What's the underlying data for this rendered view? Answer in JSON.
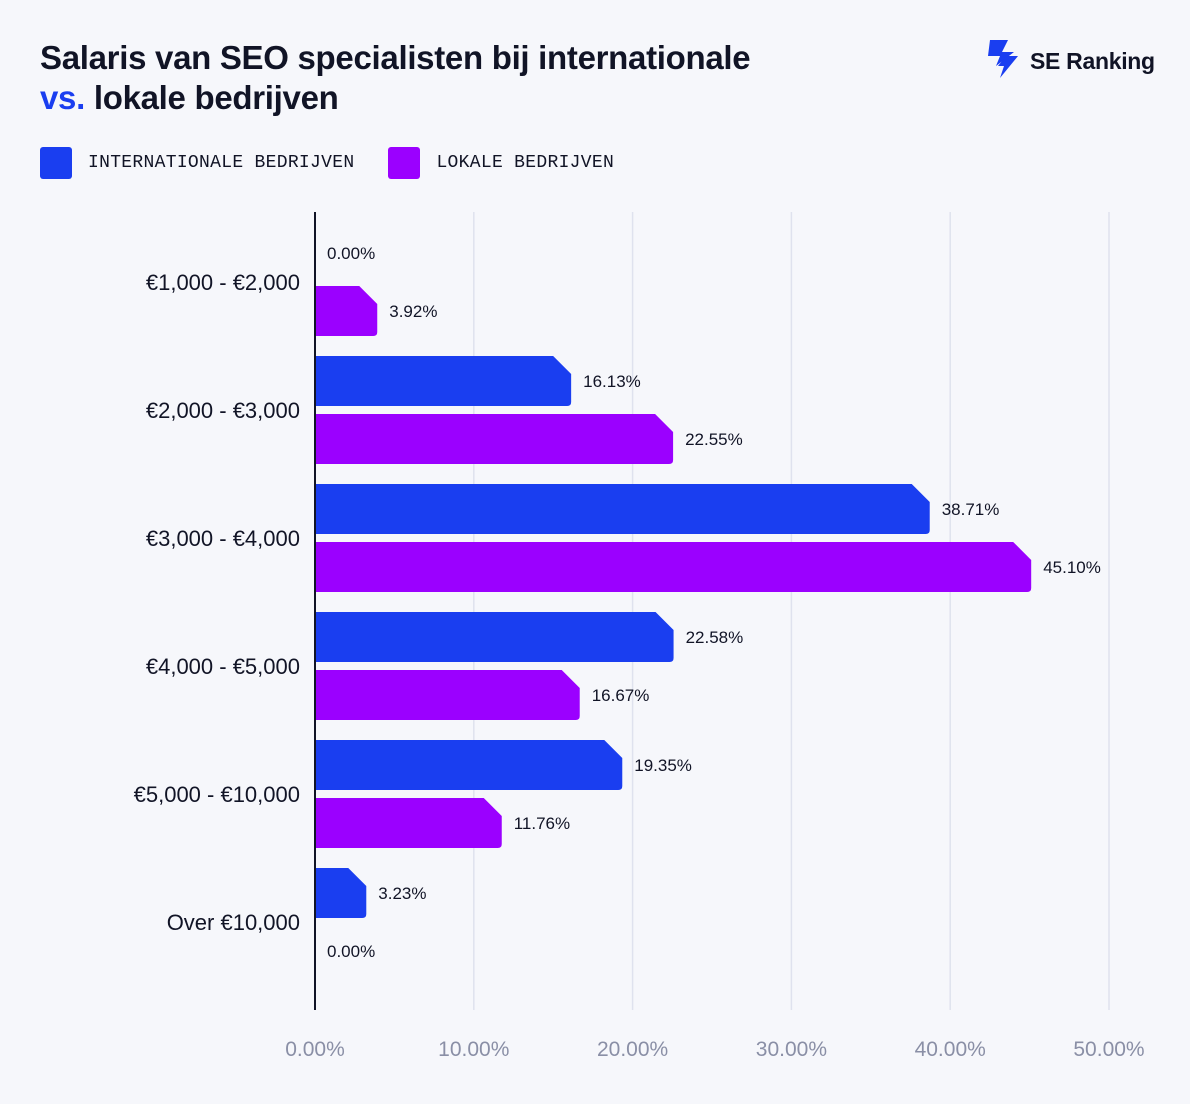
{
  "header": {
    "title_line1": "Salaris van SEO specialisten bij internationale",
    "title_accent": "vs.",
    "title_line2_rest": " lokale bedrijven"
  },
  "logo": {
    "text": "SE Ranking",
    "icon": "se-ranking-logo-icon",
    "color": "#1a3ef0"
  },
  "legend": [
    {
      "label": "INTERNATIONALE BEDRIJVEN",
      "color": "#1a3ef0"
    },
    {
      "label": "LOKALE BEDRIJVEN",
      "color": "#9b00ff"
    }
  ],
  "chart_data": {
    "type": "bar",
    "orientation": "horizontal",
    "title": "Salaris van SEO specialisten bij internationale vs. lokale bedrijven",
    "categories": [
      "€1,000 - €2,000",
      "€2,000 - €3,000",
      "€3,000 - €4,000",
      "€4,000 - €5,000",
      "€5,000 - €10,000",
      "Over €10,000"
    ],
    "series": [
      {
        "name": "INTERNATIONALE BEDRIJVEN",
        "color": "#1a3ef0",
        "values": [
          0.0,
          16.13,
          38.71,
          22.58,
          19.35,
          3.23
        ]
      },
      {
        "name": "LOKALE BEDRIJVEN",
        "color": "#9b00ff",
        "values": [
          3.92,
          22.55,
          45.1,
          16.67,
          11.76,
          0.0
        ]
      }
    ],
    "xlim": [
      0,
      50
    ],
    "xticks": [
      "0.00%",
      "10.00%",
      "20.00%",
      "30.00%",
      "40.00%",
      "50.00%"
    ],
    "grid": true,
    "legend_position": "top-left"
  }
}
